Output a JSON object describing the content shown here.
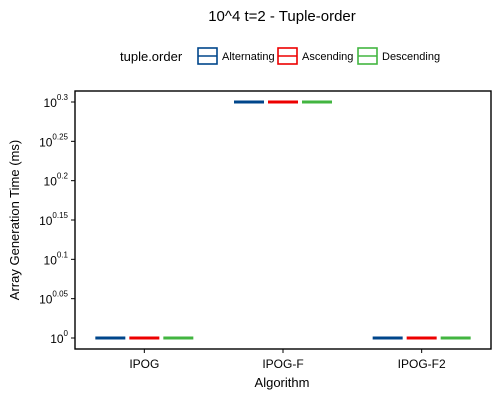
{
  "chart_data": {
    "type": "boxplot",
    "title": "10^4 t=2 - Tuple-order",
    "xlabel": "Algorithm",
    "ylabel": "Array Generation Time (ms)",
    "y_scale": "log10",
    "ylim_exponent": [
      0,
      0.3
    ],
    "y_ticks": [
      {
        "base": "10",
        "exp": "0.3",
        "value": 0.3
      },
      {
        "base": "10",
        "exp": "0.25",
        "value": 0.25
      },
      {
        "base": "10",
        "exp": "0.2",
        "value": 0.2
      },
      {
        "base": "10",
        "exp": "0.15",
        "value": 0.15
      },
      {
        "base": "10",
        "exp": "0.1",
        "value": 0.1
      },
      {
        "base": "10",
        "exp": "0.05",
        "value": 0.05
      },
      {
        "base": "10",
        "exp": "0",
        "value": 0
      }
    ],
    "categories": [
      "IPOG",
      "IPOG-F",
      "IPOG-F2"
    ],
    "legend": {
      "title": "tuple.order",
      "position": "top"
    },
    "series": [
      {
        "name": "Alternating",
        "color": "#00468b",
        "values_log10": [
          0,
          0.3,
          0
        ]
      },
      {
        "name": "Ascending",
        "color": "#ed0000",
        "values_log10": [
          0,
          0.3,
          0
        ]
      },
      {
        "name": "Descending",
        "color": "#42b540",
        "values_log10": [
          0,
          0.3,
          0
        ]
      }
    ],
    "grid": false
  }
}
